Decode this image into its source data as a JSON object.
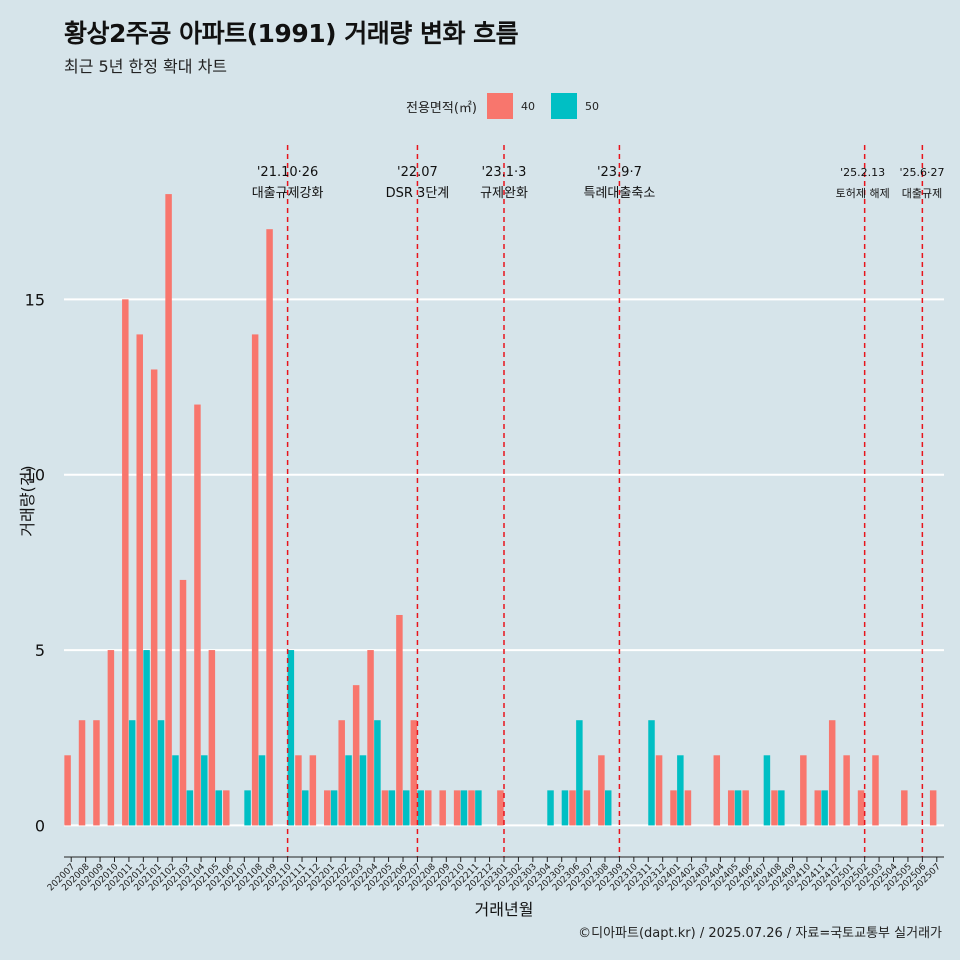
{
  "chart_data": {
    "type": "bar",
    "title": "황상2주공 아파트(1991) 거래량 변화 흐름",
    "subtitle": "최근 5년 한정 확대 차트",
    "xlabel": "거래년월",
    "ylabel": "거래량(건)",
    "ylim": [
      -0.9,
      19.4
    ],
    "yticks": [
      0,
      5,
      10,
      15
    ],
    "legend": {
      "title": "전용면적(㎡)",
      "position": "top",
      "entries": [
        {
          "name": "40",
          "color": "#F8766D"
        },
        {
          "name": "50",
          "color": "#00BFC4"
        }
      ]
    },
    "categories": [
      "202007",
      "202008",
      "202009",
      "202010",
      "202011",
      "202012",
      "202101",
      "202102",
      "202103",
      "202104",
      "202105",
      "202106",
      "202107",
      "202108",
      "202109",
      "202110",
      "202111",
      "202112",
      "202201",
      "202202",
      "202203",
      "202204",
      "202205",
      "202206",
      "202207",
      "202208",
      "202209",
      "202210",
      "202211",
      "202212",
      "202301",
      "202302",
      "202303",
      "202304",
      "202305",
      "202306",
      "202307",
      "202308",
      "202309",
      "202310",
      "202311",
      "202312",
      "202401",
      "202402",
      "202403",
      "202404",
      "202405",
      "202406",
      "202407",
      "202408",
      "202409",
      "202410",
      "202411",
      "202412",
      "202501",
      "202502",
      "202503",
      "202504",
      "202505",
      "202506",
      "202507"
    ],
    "series": [
      {
        "name": "40",
        "color": "#F8766D",
        "values": [
          2,
          3,
          3,
          5,
          15,
          14,
          13,
          18,
          7,
          12,
          5,
          1,
          0,
          14,
          17,
          0,
          2,
          2,
          1,
          3,
          4,
          5,
          1,
          6,
          3,
          1,
          1,
          1,
          1,
          0,
          1,
          0,
          0,
          0,
          0,
          1,
          1,
          2,
          0,
          0,
          0,
          2,
          1,
          1,
          0,
          2,
          1,
          1,
          0,
          1,
          0,
          2,
          1,
          3,
          2,
          1,
          2,
          0,
          1,
          0,
          1
        ]
      },
      {
        "name": "50",
        "color": "#00BFC4",
        "values": [
          0,
          0,
          0,
          0,
          3,
          5,
          3,
          2,
          1,
          2,
          1,
          0,
          1,
          2,
          0,
          5,
          1,
          0,
          1,
          2,
          2,
          3,
          1,
          1,
          1,
          0,
          0,
          1,
          1,
          0,
          0,
          0,
          0,
          1,
          1,
          3,
          0,
          1,
          0,
          0,
          3,
          0,
          2,
          0,
          0,
          0,
          1,
          0,
          2,
          1,
          0,
          0,
          1,
          0,
          0,
          0,
          0,
          0,
          0,
          0,
          0
        ]
      }
    ],
    "events": [
      {
        "month": "202110",
        "date": "'21.10·26",
        "label": "대출규제강화"
      },
      {
        "month": "202207",
        "date": "'22.07",
        "label": "DSR 3단계"
      },
      {
        "month": "202301",
        "date": "'23.1·3",
        "label": "규제완화"
      },
      {
        "month": "202309",
        "date": "'23.9·7",
        "label": "특례대출축소"
      },
      {
        "month": "202502",
        "date": "'25.2.13",
        "label": "토허제 해제"
      },
      {
        "month": "202506",
        "date": "'25.6·27",
        "label": "대출규제"
      }
    ],
    "caption": "©디아파트(dapt.kr) / 2025.07.26 / 자료=국토교통부 실거래가",
    "grid": true,
    "event_line_color": "#e8141c"
  }
}
